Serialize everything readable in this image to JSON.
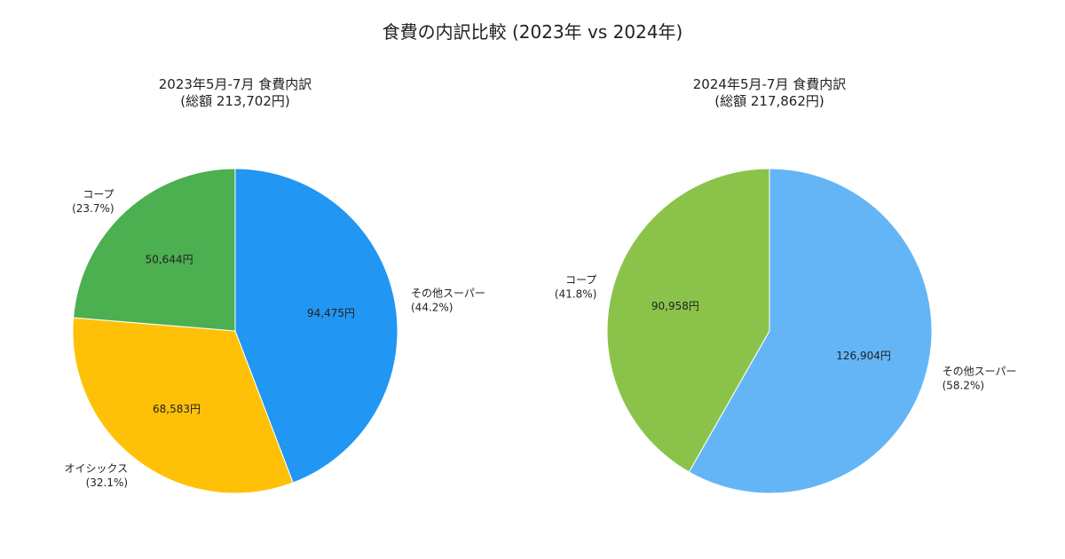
{
  "title": "食費の内訳比較 (2023年 vs 2024年)",
  "chart_data": [
    {
      "type": "pie",
      "title": "2023年5月-7月 食費内訳",
      "subtitle": "(総額 213,702円)",
      "slices": [
        {
          "name": "その他スーパー",
          "value": 94475,
          "value_label": "94,475円",
          "percent_label": "(44.2%)",
          "color": "#2196F3"
        },
        {
          "name": "オイシックス",
          "value": 68583,
          "value_label": "68,583円",
          "percent_label": "(32.1%)",
          "color": "#FFC107"
        },
        {
          "name": "コープ",
          "value": 50644,
          "value_label": "50,644円",
          "percent_label": "(23.7%)",
          "color": "#4CAF50"
        }
      ]
    },
    {
      "type": "pie",
      "title": "2024年5月-7月 食費内訳",
      "subtitle": "(総額 217,862円)",
      "slices": [
        {
          "name": "その他スーパー",
          "value": 126904,
          "value_label": "126,904円",
          "percent_label": "(58.2%)",
          "color": "#64B5F6"
        },
        {
          "name": "コープ",
          "value": 90958,
          "value_label": "90,958円",
          "percent_label": "(41.8%)",
          "color": "#8BC34A"
        }
      ]
    }
  ]
}
